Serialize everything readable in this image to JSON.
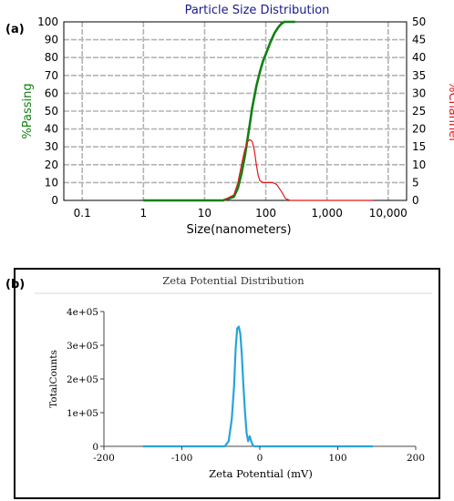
{
  "panels": {
    "a": "(a)",
    "b": "(b)"
  },
  "chart_data": [
    {
      "type": "line",
      "title": "Particle Size Distribution",
      "xlabel": "Size(nanometers)",
      "ylabel": "%Passing",
      "y2label": "%Channel",
      "xscale": "log",
      "xlim": [
        0.05,
        20000
      ],
      "ylim": [
        0,
        100
      ],
      "y2lim": [
        0,
        50
      ],
      "xticks": [
        0.1,
        1,
        10,
        100,
        1000,
        10000
      ],
      "xtick_labels": [
        "0.1",
        "1",
        "10",
        "100",
        "1,000",
        "10,000"
      ],
      "yticks": [
        0,
        10,
        20,
        30,
        40,
        50,
        60,
        70,
        80,
        90,
        100
      ],
      "y2ticks": [
        0,
        5,
        10,
        15,
        20,
        25,
        30,
        35,
        40,
        45,
        50
      ],
      "grid": true,
      "colors": {
        "passing": "#128012",
        "channel": "#e01818",
        "title": "#1a1a8c",
        "grid": "#b4b4b4"
      },
      "series": [
        {
          "name": "%Passing",
          "axis": "left",
          "x": [
            1,
            10,
            20,
            30,
            35,
            40,
            45,
            50,
            55,
            60,
            70,
            80,
            90,
            100,
            120,
            140,
            160,
            180,
            200,
            250,
            300
          ],
          "y": [
            0,
            0,
            0,
            2,
            7,
            15,
            24,
            34,
            43,
            52,
            64,
            72,
            78,
            82,
            89,
            94,
            97,
            99,
            100,
            100,
            100
          ]
        },
        {
          "name": "%Channel",
          "axis": "right",
          "x": [
            20,
            30,
            35,
            40,
            45,
            50,
            55,
            60,
            65,
            70,
            75,
            80,
            90,
            100,
            110,
            130,
            150,
            180,
            210,
            250,
            300,
            1000,
            5600
          ],
          "y": [
            0,
            1.5,
            5,
            10,
            14,
            16.5,
            17,
            16.5,
            14,
            10,
            7,
            5.5,
            5,
            5,
            5,
            5,
            4.5,
            2.5,
            0.5,
            0,
            0,
            0,
            0
          ]
        }
      ]
    },
    {
      "type": "line",
      "title": "Zeta Potential Distribution",
      "xlabel": "Zeta Potential (mV)",
      "ylabel": "TotalCounts",
      "xlim": [
        -200,
        200
      ],
      "ylim": [
        0,
        400000
      ],
      "xticks": [
        -200,
        -100,
        0,
        100,
        200
      ],
      "xtick_labels": [
        "-200",
        "-100",
        "0",
        "100",
        "200"
      ],
      "yticks": [
        0,
        100000,
        200000,
        300000,
        400000
      ],
      "ytick_labels": [
        "0",
        "1e+05",
        "2e+05",
        "3e+05",
        "4e+05"
      ],
      "grid": false,
      "colors": {
        "line": "#29a3dc"
      },
      "series": [
        {
          "name": "",
          "x": [
            -150,
            -60,
            -45,
            -40,
            -36,
            -33,
            -31,
            -29,
            -27,
            -25,
            -23,
            -21,
            -19,
            -17,
            -15,
            -13,
            -11,
            -9,
            -7,
            -5,
            0,
            145
          ],
          "y": [
            0,
            0,
            0,
            15000,
            80000,
            180000,
            290000,
            350000,
            355000,
            335000,
            270000,
            180000,
            100000,
            40000,
            15000,
            30000,
            15000,
            3000,
            0,
            0,
            0,
            0
          ]
        }
      ]
    }
  ]
}
